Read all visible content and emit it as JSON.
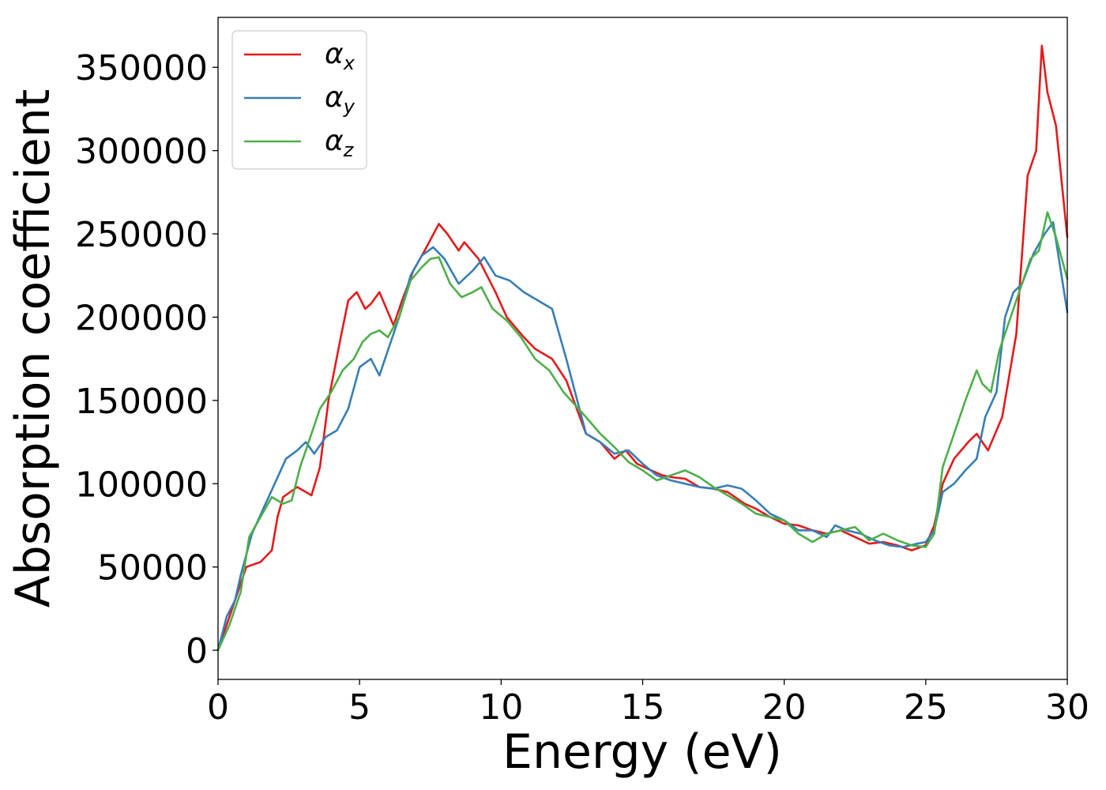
{
  "chart_data": {
    "type": "line",
    "xlabel": "Energy (eV)",
    "ylabel": "Absorption coefficient",
    "xlim": [
      0,
      30
    ],
    "ylim": [
      -17500,
      380000
    ],
    "xticks": [
      0,
      5,
      10,
      15,
      20,
      25,
      30
    ],
    "xtick_labels": [
      "0",
      "5",
      "10",
      "15",
      "20",
      "25",
      "30"
    ],
    "yticks": [
      0,
      50000,
      100000,
      150000,
      200000,
      250000,
      300000,
      350000
    ],
    "ytick_labels": [
      "0",
      "50000",
      "100000",
      "150000",
      "200000",
      "250000",
      "300000",
      "350000"
    ],
    "grid": false,
    "legend_position": "top-left",
    "series": [
      {
        "name": "αx",
        "symbol": "α",
        "subscript": "x",
        "color": "#e41a1c",
        "x": [
          0,
          0.3,
          0.6,
          1.0,
          1.5,
          1.9,
          2.1,
          2.3,
          2.8,
          3.3,
          3.6,
          3.9,
          4.3,
          4.6,
          4.9,
          5.2,
          5.4,
          5.7,
          6.2,
          6.5,
          6.9,
          7.3,
          7.8,
          8.1,
          8.5,
          8.7,
          9.2,
          9.8,
          10.2,
          10.8,
          11.2,
          11.8,
          12.3,
          13.0,
          13.5,
          14.0,
          14.4,
          14.8,
          15.3,
          15.7,
          16.0,
          16.5,
          17.0,
          17.5,
          18.0,
          18.6,
          19.0,
          19.5,
          20.0,
          20.5,
          21.0,
          21.5,
          22.0,
          22.5,
          23.0,
          23.5,
          24.0,
          24.5,
          25.0,
          25.3,
          25.6,
          26.0,
          26.5,
          26.8,
          27.2,
          27.7,
          28.2,
          28.6,
          28.9,
          29.1,
          29.3,
          29.6,
          30.0
        ],
        "y": [
          0,
          15000,
          30000,
          50000,
          53000,
          60000,
          80000,
          92000,
          98000,
          93000,
          110000,
          150000,
          185000,
          210000,
          215000,
          205000,
          208000,
          215000,
          195000,
          210000,
          228000,
          240000,
          256000,
          250000,
          240000,
          245000,
          235000,
          215000,
          200000,
          188000,
          181000,
          175000,
          162000,
          130000,
          125000,
          115000,
          120000,
          112000,
          108000,
          105000,
          104000,
          103000,
          98000,
          97000,
          95000,
          88000,
          85000,
          80000,
          76000,
          75000,
          72000,
          70000,
          72000,
          68000,
          64000,
          65000,
          63000,
          60000,
          63000,
          75000,
          100000,
          115000,
          125000,
          130000,
          120000,
          140000,
          190000,
          285000,
          300000,
          363000,
          335000,
          315000,
          248000
        ]
      },
      {
        "name": "αy",
        "symbol": "α",
        "subscript": "y",
        "color": "#377eb8",
        "x": [
          0,
          0.3,
          0.6,
          0.8,
          1.2,
          1.6,
          2.0,
          2.4,
          2.8,
          3.1,
          3.4,
          3.8,
          4.2,
          4.6,
          5.0,
          5.4,
          5.7,
          6.0,
          6.4,
          6.8,
          7.2,
          7.6,
          8.0,
          8.5,
          9.0,
          9.4,
          9.8,
          10.3,
          10.8,
          11.3,
          11.8,
          12.3,
          13.0,
          13.5,
          14.0,
          14.5,
          15.0,
          15.5,
          16.0,
          16.5,
          17.0,
          17.5,
          18.0,
          18.5,
          19.0,
          19.5,
          20.0,
          20.5,
          21.0,
          21.5,
          21.8,
          22.2,
          22.7,
          23.2,
          23.7,
          24.2,
          24.7,
          25.0,
          25.3,
          25.6,
          26.0,
          26.4,
          26.8,
          27.1,
          27.5,
          27.8,
          28.1,
          28.4,
          28.8,
          29.2,
          29.5,
          30.0
        ],
        "y": [
          0,
          20000,
          30000,
          45000,
          70000,
          85000,
          100000,
          115000,
          120000,
          125000,
          118000,
          128000,
          132000,
          145000,
          170000,
          175000,
          165000,
          180000,
          200000,
          225000,
          237000,
          242000,
          235000,
          220000,
          228000,
          236000,
          225000,
          222000,
          215000,
          210000,
          205000,
          175000,
          130000,
          125000,
          118000,
          120000,
          112000,
          105000,
          102000,
          100000,
          98000,
          97000,
          99000,
          97000,
          90000,
          82000,
          78000,
          72000,
          72000,
          68000,
          75000,
          72000,
          70000,
          66000,
          63000,
          62000,
          64000,
          65000,
          72000,
          95000,
          100000,
          108000,
          115000,
          140000,
          155000,
          200000,
          215000,
          220000,
          238000,
          250000,
          257000,
          203000
        ]
      },
      {
        "name": "αz",
        "symbol": "α",
        "subscript": "z",
        "color": "#4daf4a",
        "x": [
          0,
          0.4,
          0.8,
          1.1,
          1.5,
          1.9,
          2.3,
          2.6,
          2.9,
          3.3,
          3.6,
          4.0,
          4.4,
          4.8,
          5.1,
          5.4,
          5.7,
          6.0,
          6.4,
          6.8,
          7.2,
          7.5,
          7.8,
          8.2,
          8.6,
          9.0,
          9.3,
          9.7,
          10.2,
          10.7,
          11.2,
          11.7,
          12.2,
          13.0,
          13.5,
          14.0,
          14.5,
          15.0,
          15.5,
          16.0,
          16.5,
          17.0,
          17.5,
          18.0,
          18.5,
          19.0,
          19.5,
          20.0,
          20.5,
          21.0,
          21.5,
          22.0,
          22.5,
          23.0,
          23.5,
          24.0,
          24.5,
          25.0,
          25.3,
          25.6,
          26.0,
          26.4,
          26.8,
          27.0,
          27.3,
          27.6,
          28.0,
          28.3,
          28.7,
          29.0,
          29.3,
          29.6,
          30.0
        ],
        "y": [
          0,
          15000,
          35000,
          68000,
          80000,
          92000,
          88000,
          90000,
          110000,
          130000,
          145000,
          155000,
          168000,
          175000,
          185000,
          190000,
          192000,
          188000,
          200000,
          222000,
          230000,
          235000,
          236000,
          220000,
          212000,
          215000,
          218000,
          205000,
          198000,
          188000,
          175000,
          168000,
          155000,
          140000,
          130000,
          122000,
          113000,
          108000,
          102000,
          105000,
          108000,
          104000,
          98000,
          93000,
          88000,
          82000,
          80000,
          78000,
          70000,
          65000,
          70000,
          72000,
          74000,
          66000,
          70000,
          66000,
          63000,
          62000,
          70000,
          110000,
          130000,
          150000,
          168000,
          160000,
          155000,
          180000,
          200000,
          215000,
          235000,
          240000,
          263000,
          248000,
          223000
        ]
      }
    ]
  }
}
